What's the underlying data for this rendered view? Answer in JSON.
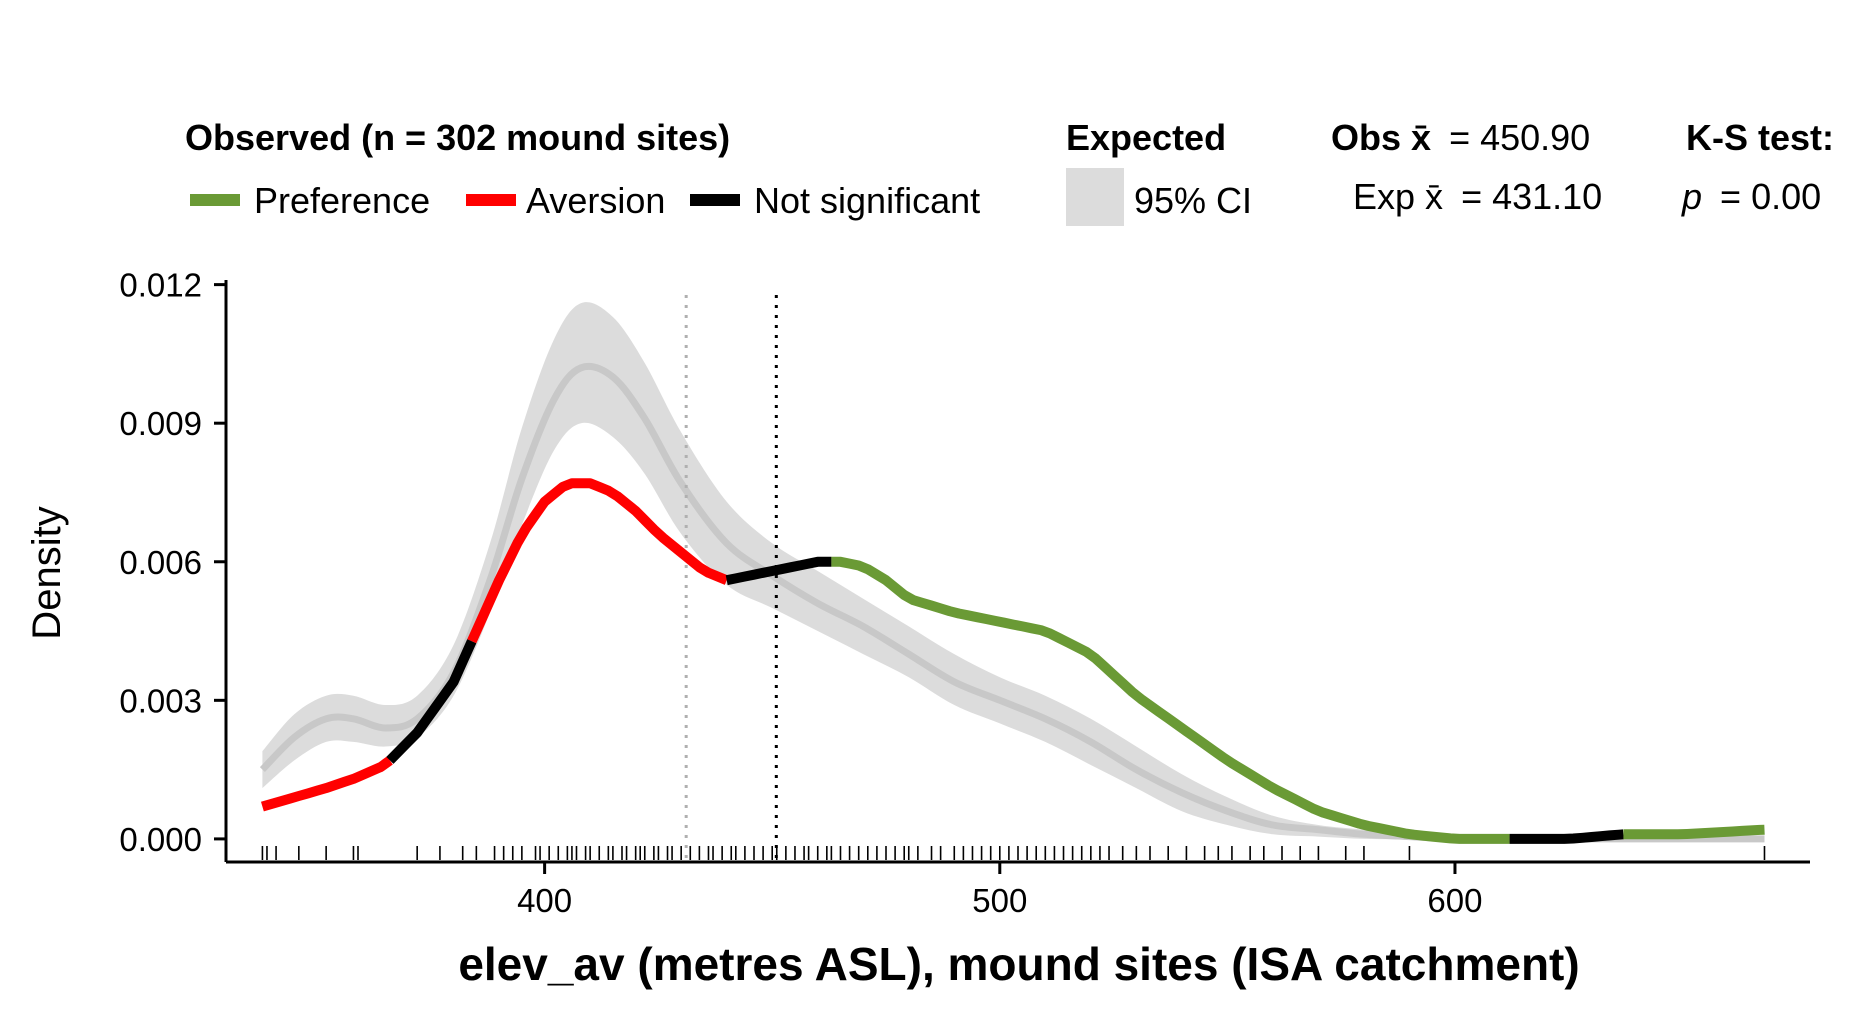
{
  "legend": {
    "observed_title": "Observed (n = 302 mound sites)",
    "preference_label": "Preference",
    "aversion_label": "Aversion",
    "not_significant_label": "Not significant",
    "expected_title": "Expected",
    "ci_label": "95% CI",
    "obs_mean_label": "Obs x̄",
    "obs_mean_value": "= 450.90",
    "exp_mean_label": "Exp x̄",
    "exp_mean_value": "= 431.10",
    "ks_title": "K-S test:",
    "p_label": "p",
    "p_value": "= 0.00"
  },
  "colors": {
    "preference": "#6a9a35",
    "aversion": "#ff0000",
    "not_significant": "#000000",
    "expected_band": "#dcdcdc",
    "expected_line": "#c8c8c8",
    "obs_mean_line": "#000000",
    "exp_mean_line": "#b0b0b0"
  },
  "chart_data": {
    "type": "line",
    "xlabel": "elev_av (metres ASL), mound sites (ISA catchment)",
    "ylabel": "Density",
    "xlim": [
      330,
      678
    ],
    "ylim": [
      -0.0005,
      0.0121
    ],
    "x_ticks": [
      400,
      500,
      600
    ],
    "x_tick_labels": [
      "400",
      "500",
      "600"
    ],
    "y_ticks": [
      0,
      0.003,
      0.006,
      0.009,
      0.012
    ],
    "y_tick_labels": [
      "0.000",
      "0.003",
      "0.006",
      "0.009",
      "0.012"
    ],
    "obs_mean": 450.9,
    "exp_mean": 431.1,
    "expected": {
      "name": "Expected",
      "x": [
        338,
        345,
        352,
        358,
        365,
        372,
        380,
        388,
        395,
        402,
        408,
        415,
        422,
        430,
        440,
        450,
        460,
        470,
        480,
        490,
        500,
        510,
        520,
        530,
        540,
        550,
        560,
        570,
        580,
        590,
        600,
        615,
        630,
        650,
        668
      ],
      "mean": [
        0.0015,
        0.0022,
        0.0026,
        0.0026,
        0.0024,
        0.0026,
        0.0036,
        0.0056,
        0.0078,
        0.0095,
        0.0102,
        0.01,
        0.0091,
        0.0077,
        0.0064,
        0.0057,
        0.0051,
        0.0046,
        0.004,
        0.0034,
        0.003,
        0.0026,
        0.0021,
        0.0015,
        0.001,
        0.0006,
        0.0003,
        0.0002,
        0.0001,
        5e-05,
        0.0,
        0.0,
        0.0,
        0.0,
        0.0
      ],
      "lower": [
        0.0011,
        0.0017,
        0.0021,
        0.0021,
        0.002,
        0.0022,
        0.0031,
        0.0049,
        0.0068,
        0.0084,
        0.009,
        0.0087,
        0.0079,
        0.0066,
        0.0055,
        0.005,
        0.0045,
        0.004,
        0.0035,
        0.0029,
        0.0025,
        0.0021,
        0.0016,
        0.0011,
        0.0006,
        0.0003,
        0.0001,
        5e-05,
        0.0,
        0.0,
        0.0,
        0.0,
        0.0,
        0.0,
        0.0
      ],
      "upper": [
        0.0019,
        0.0027,
        0.0031,
        0.0031,
        0.0029,
        0.0031,
        0.0042,
        0.0064,
        0.0089,
        0.0108,
        0.0116,
        0.0113,
        0.0103,
        0.0088,
        0.0073,
        0.0064,
        0.0058,
        0.0052,
        0.0046,
        0.004,
        0.0035,
        0.0031,
        0.0026,
        0.002,
        0.0014,
        0.0009,
        0.0005,
        0.0003,
        0.0002,
        0.0001,
        5e-05,
        0.0,
        0.0,
        0.0,
        0.0
      ]
    },
    "observed": {
      "name": "Observed",
      "x": [
        338,
        345,
        352,
        358,
        365,
        372,
        380,
        385,
        390,
        395,
        400,
        405,
        410,
        415,
        420,
        425,
        430,
        435,
        440,
        445,
        450,
        455,
        460,
        465,
        470,
        475,
        480,
        490,
        500,
        510,
        520,
        530,
        540,
        550,
        560,
        570,
        580,
        590,
        600,
        612,
        625,
        637,
        650,
        668
      ],
      "y": [
        0.0007,
        0.0009,
        0.0011,
        0.0013,
        0.0016,
        0.0023,
        0.0034,
        0.0045,
        0.0056,
        0.0066,
        0.0073,
        0.0077,
        0.0077,
        0.0075,
        0.0071,
        0.0066,
        0.0062,
        0.0058,
        0.0056,
        0.0057,
        0.0058,
        0.0059,
        0.006,
        0.006,
        0.0059,
        0.0056,
        0.0052,
        0.0049,
        0.0047,
        0.0045,
        0.004,
        0.0031,
        0.0024,
        0.0017,
        0.0011,
        0.0006,
        0.0003,
        0.0001,
        0.0,
        0.0,
        0.0,
        0.0001,
        0.0001,
        0.0002
      ],
      "segments": [
        {
          "status": "aversion",
          "x_start": 338,
          "x_end": 366
        },
        {
          "status": "not_significant",
          "x_start": 366,
          "x_end": 384
        },
        {
          "status": "aversion",
          "x_start": 384,
          "x_end": 440
        },
        {
          "status": "not_significant",
          "x_start": 440,
          "x_end": 463
        },
        {
          "status": "preference",
          "x_start": 463,
          "x_end": 612
        },
        {
          "status": "not_significant",
          "x_start": 612,
          "x_end": 637
        },
        {
          "status": "preference",
          "x_start": 637,
          "x_end": 668
        }
      ]
    },
    "rug_x": [
      338,
      339,
      341,
      346,
      352,
      358,
      359,
      372,
      377,
      382,
      385,
      389,
      391,
      393,
      395,
      398,
      399,
      401,
      403,
      405,
      406,
      407,
      409,
      410,
      412,
      414,
      415,
      417,
      418,
      420,
      421,
      422,
      424,
      425,
      427,
      428,
      430,
      432,
      434,
      436,
      437,
      439,
      441,
      442,
      444,
      446,
      448,
      450,
      451,
      453,
      455,
      457,
      458,
      460,
      462,
      463,
      465,
      467,
      469,
      471,
      473,
      475,
      477,
      479,
      480,
      482,
      485,
      487,
      490,
      492,
      494,
      496,
      498,
      500,
      502,
      504,
      506,
      508,
      510,
      512,
      514,
      516,
      518,
      520,
      522,
      524,
      527,
      530,
      533,
      537,
      541,
      545,
      548,
      551,
      555,
      558,
      562,
      566,
      570,
      576,
      580,
      590,
      668
    ]
  }
}
